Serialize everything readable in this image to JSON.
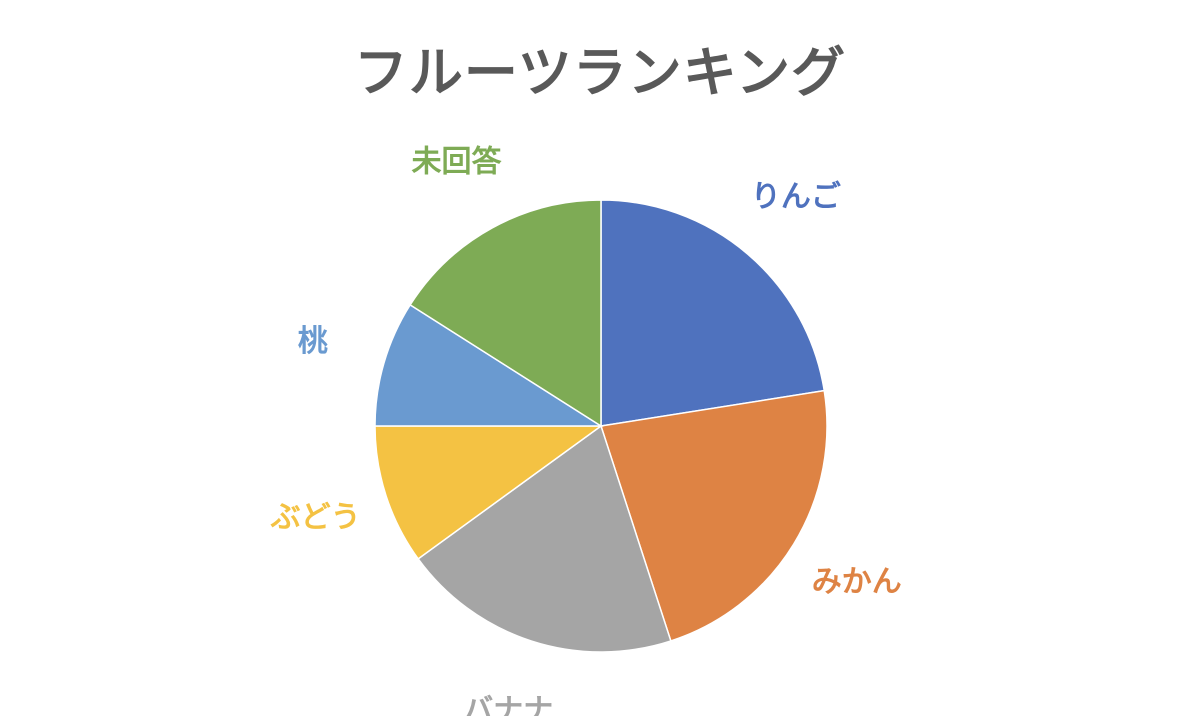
{
  "chart_data": {
    "type": "pie",
    "title": "フルーツランキング",
    "start_angle_deg": 0,
    "direction": "clockwise",
    "slices": [
      {
        "label": "りんご",
        "value": 22.5,
        "color": "#4F72BE"
      },
      {
        "label": "みかん",
        "value": 22.5,
        "color": "#DE8344"
      },
      {
        "label": "バナナ",
        "value": 20.0,
        "color": "#A5A5A5"
      },
      {
        "label": "ぶどう",
        "value": 10.0,
        "color": "#F4C243"
      },
      {
        "label": "桃",
        "value": 9.0,
        "color": "#6A9AD0"
      },
      {
        "label": "未回答",
        "value": 16.0,
        "color": "#7EAB55"
      }
    ]
  }
}
